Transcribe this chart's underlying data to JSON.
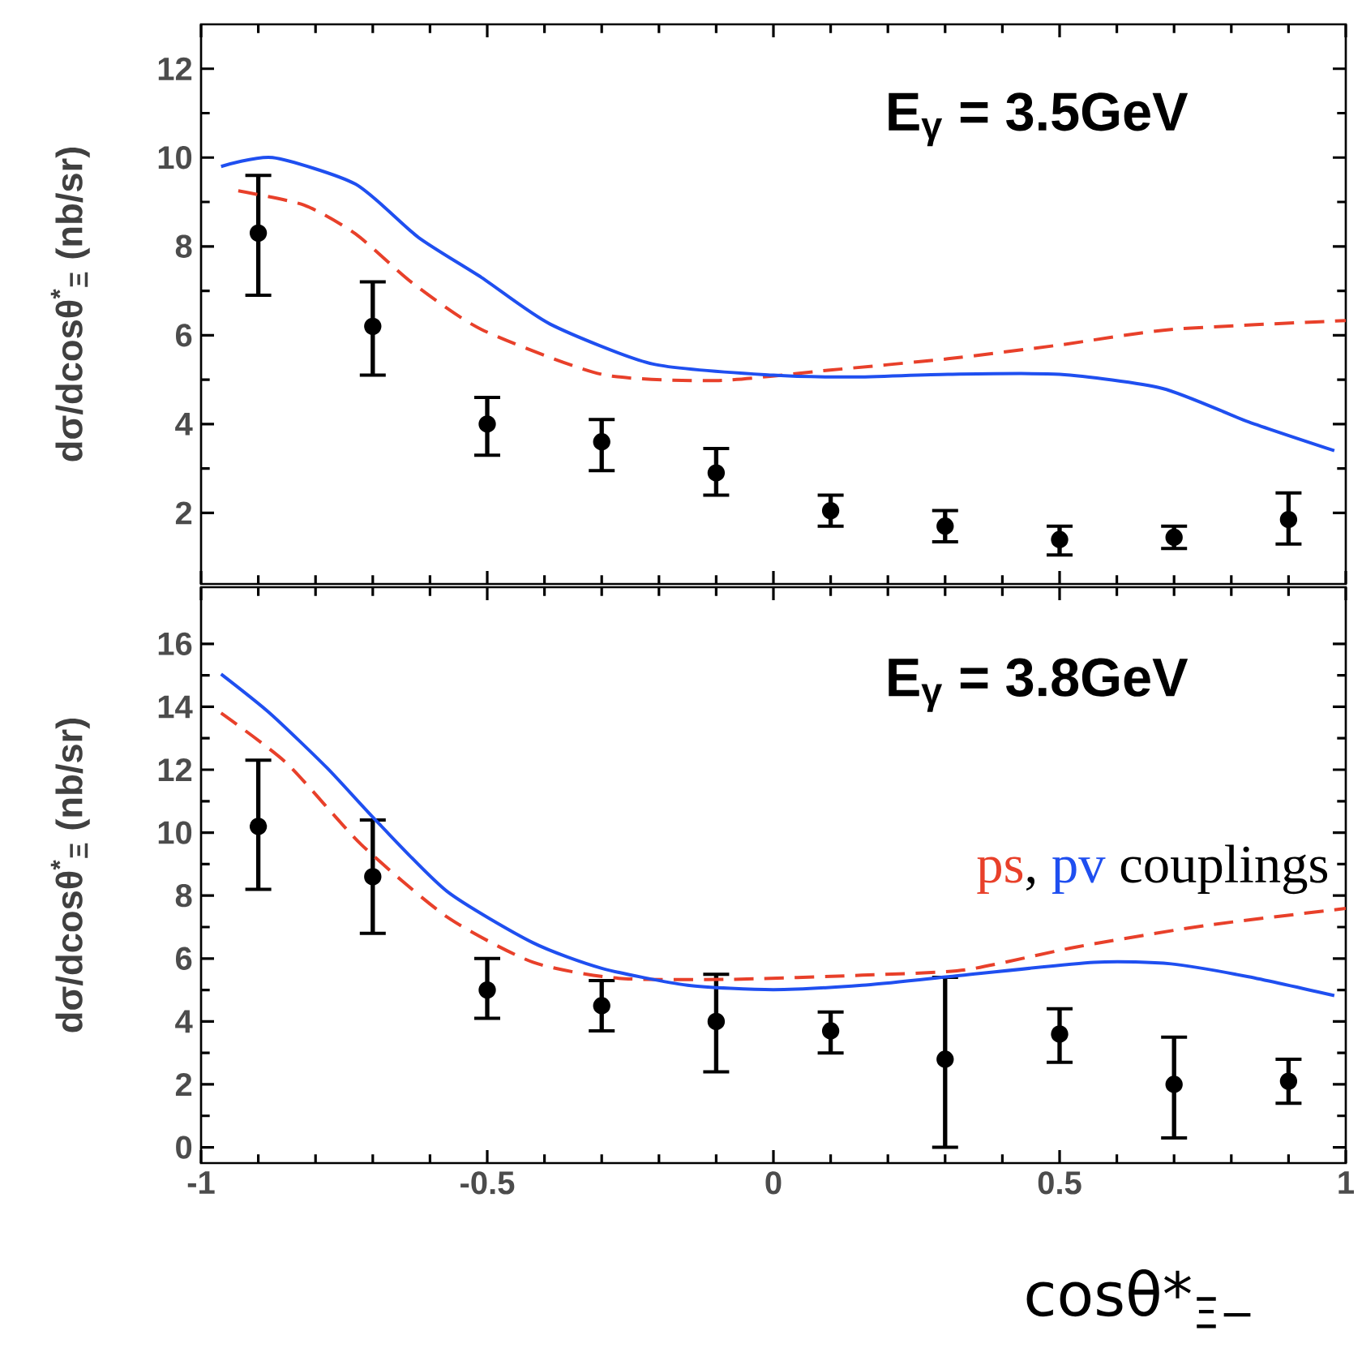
{
  "chart_data": [
    {
      "type": "line",
      "x": [
        -0.9,
        -0.7,
        -0.5,
        -0.3,
        -0.1,
        0.1,
        0.3,
        0.5,
        0.7,
        0.9
      ],
      "ylabel": "dσ/dcosθ$^{*}$$_{Ξ}$ (nb/sr)",
      "annotations": [
        "E$_{γ}$ = 3.5GeV"
      ],
      "xlim": [
        -1,
        1
      ],
      "ylim": [
        0.4,
        13
      ],
      "xticks": [
        -1,
        -0.5,
        0,
        0.5,
        1
      ],
      "yticks": [
        2,
        4,
        6,
        8,
        10,
        12
      ],
      "tick_labels": "y",
      "grid": false,
      "legend": false,
      "series": [
        {
          "type": "scatter",
          "color": "#000000",
          "marker": "circle",
          "values": [
            8.3,
            6.2,
            4.0,
            3.6,
            2.9,
            2.05,
            1.7,
            1.4,
            1.45,
            1.85
          ],
          "errors": [
            [
              6.9,
              9.6
            ],
            [
              5.1,
              7.2
            ],
            [
              3.3,
              4.6
            ],
            [
              2.95,
              4.1
            ],
            [
              2.4,
              3.45
            ],
            [
              1.7,
              2.4
            ],
            [
              1.35,
              2.05
            ],
            [
              1.05,
              1.7
            ],
            [
              1.2,
              1.7
            ],
            [
              1.3,
              2.45
            ]
          ]
        },
        {
          "type": "line",
          "color": "#e8402a",
          "line_style": "dashed",
          "x": [
            -0.935,
            -0.82,
            -0.73,
            -0.63,
            -0.51,
            -0.3,
            -0.1,
            0.095,
            0.305,
            0.5,
            0.695,
            1.0
          ],
          "values": [
            9.25,
            8.93,
            8.28,
            7.17,
            6.13,
            5.12,
            4.98,
            5.21,
            5.47,
            5.78,
            6.13,
            6.33
          ]
        },
        {
          "type": "line",
          "color": "#1f4ff0",
          "line_style": "solid",
          "x": [
            -0.965,
            -0.875,
            -0.73,
            -0.62,
            -0.51,
            -0.39,
            -0.21,
            0.0,
            0.14,
            0.305,
            0.5,
            0.68,
            0.83,
            0.98
          ],
          "values": [
            9.8,
            10.0,
            9.4,
            8.2,
            7.3,
            6.25,
            5.35,
            5.1,
            5.06,
            5.12,
            5.12,
            4.8,
            4.05,
            3.4
          ]
        }
      ]
    },
    {
      "type": "line",
      "x": [
        -0.9,
        -0.7,
        -0.5,
        -0.3,
        -0.1,
        0.1,
        0.3,
        0.5,
        0.7,
        0.9
      ],
      "xlabel": "cosθ*$_{Ξ−}$",
      "ylabel": "dσ/dcosθ$^{*}$$_{Ξ}$ (nb/sr)",
      "annotations": [
        "E$_{γ}$ = 3.8GeV",
        ",",
        "couplings"
      ],
      "xlim": [
        -1,
        1
      ],
      "ylim": [
        -0.5,
        17.8
      ],
      "xticks": [
        -1,
        -0.5,
        0,
        0.5,
        1
      ],
      "yticks": [
        0,
        2,
        4,
        6,
        8,
        10,
        12,
        14,
        16
      ],
      "grid": false,
      "legend": "right",
      "series": [
        {
          "type": "scatter",
          "color": "#000000",
          "marker": "circle",
          "values": [
            10.2,
            8.6,
            5.0,
            4.5,
            4.0,
            3.7,
            2.8,
            3.6,
            2.0,
            2.1
          ],
          "errors": [
            [
              8.2,
              12.3
            ],
            [
              6.8,
              10.4
            ],
            [
              4.1,
              6.0
            ],
            [
              3.7,
              5.3
            ],
            [
              2.4,
              5.5
            ],
            [
              3.0,
              4.3
            ],
            [
              0.0,
              5.4
            ],
            [
              2.7,
              4.4
            ],
            [
              0.3,
              3.5
            ],
            [
              1.4,
              2.8
            ]
          ]
        },
        {
          "type": "line",
          "name": "ps",
          "color": "#e8402a",
          "line_style": "dashed",
          "x": [
            -0.965,
            -0.85,
            -0.72,
            -0.57,
            -0.42,
            -0.27,
            -0.07,
            0.155,
            0.335,
            0.53,
            0.755,
            1.0
          ],
          "values": [
            13.8,
            12.2,
            9.62,
            7.32,
            5.88,
            5.37,
            5.34,
            5.47,
            5.64,
            6.37,
            7.05,
            7.59
          ]
        },
        {
          "type": "line",
          "name": "pv",
          "color": "#1f4ff0",
          "line_style": "solid",
          "x": [
            -0.965,
            -0.88,
            -0.78,
            -0.69,
            -0.57,
            -0.42,
            -0.3,
            -0.15,
            0.0,
            0.155,
            0.305,
            0.56,
            0.695,
            0.83,
            0.98
          ],
          "values": [
            15.04,
            13.8,
            12.06,
            10.3,
            8.13,
            6.5,
            5.69,
            5.15,
            5.01,
            5.15,
            5.42,
            5.88,
            5.83,
            5.42,
            4.82
          ]
        }
      ]
    }
  ]
}
